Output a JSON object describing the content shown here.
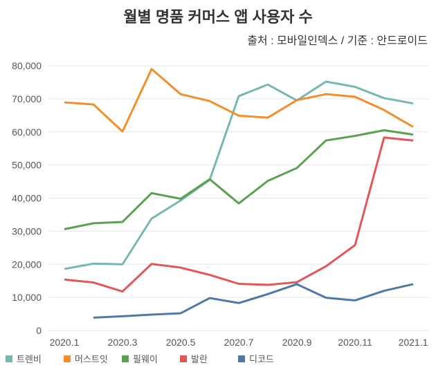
{
  "chart_data": {
    "type": "line",
    "title": "월별 명품 커머스 앱 사용자 수",
    "subtitle": "출처 : 모바일인덱스 / 기준 : 안드로이드",
    "categories": [
      "2020.1",
      null,
      "2020.3",
      null,
      "2020.5",
      null,
      "2020.7",
      null,
      "2020.9",
      null,
      "2020.11",
      null,
      "2021.1"
    ],
    "ylim": [
      0,
      80000
    ],
    "yticks": [
      0,
      {
        "value": 10000,
        "label": "10,000"
      },
      {
        "value": 20000,
        "label": "20,000"
      },
      {
        "value": 30000,
        "label": "30,000"
      },
      {
        "value": 40000,
        "label": "40,000"
      },
      {
        "value": 50000,
        "label": "50,000"
      },
      {
        "value": 60000,
        "label": "60,000"
      },
      {
        "value": 70000,
        "label": "70,000"
      },
      {
        "value": 80000,
        "label": "80,000"
      }
    ],
    "grid": true,
    "series": [
      {
        "name": "트렌비",
        "color": "#76b7b2",
        "values": [
          18600,
          20200,
          20000,
          33800,
          39300,
          45500,
          70800,
          74300,
          69500,
          75200,
          73600,
          70200,
          68600
        ]
      },
      {
        "name": "머스트잇",
        "color": "#f28e2b",
        "values": [
          68900,
          68300,
          60100,
          79000,
          71400,
          69300,
          64900,
          64300,
          69600,
          71400,
          70600,
          66600,
          61500
        ]
      },
      {
        "name": "필웨이",
        "color": "#59a14f",
        "values": [
          30600,
          32400,
          32800,
          41500,
          39800,
          45700,
          38400,
          45200,
          49100,
          57400,
          58800,
          60500,
          59200
        ]
      },
      {
        "name": "발란",
        "color": "#e15759",
        "values": [
          15400,
          14500,
          11800,
          20100,
          19000,
          16800,
          14100,
          13800,
          14600,
          19400,
          25800,
          58300,
          57400
        ]
      },
      {
        "name": "디코드",
        "color": "#4e79a7",
        "values": [
          null,
          3900,
          4300,
          4800,
          5200,
          9800,
          8300,
          11000,
          14000,
          9900,
          9100,
          12000,
          14000
        ]
      }
    ]
  }
}
